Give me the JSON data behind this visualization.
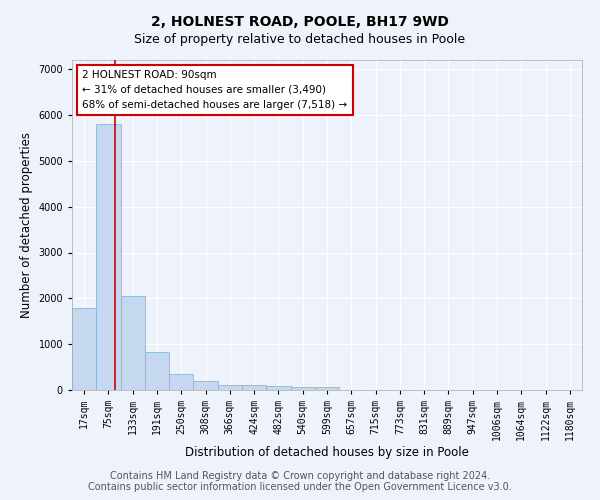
{
  "title": "2, HOLNEST ROAD, POOLE, BH17 9WD",
  "subtitle": "Size of property relative to detached houses in Poole",
  "xlabel": "Distribution of detached houses by size in Poole",
  "ylabel": "Number of detached properties",
  "bin_labels": [
    "17sqm",
    "75sqm",
    "133sqm",
    "191sqm",
    "250sqm",
    "308sqm",
    "366sqm",
    "424sqm",
    "482sqm",
    "540sqm",
    "599sqm",
    "657sqm",
    "715sqm",
    "773sqm",
    "831sqm",
    "889sqm",
    "947sqm",
    "1006sqm",
    "1064sqm",
    "1122sqm",
    "1180sqm"
  ],
  "bar_heights": [
    1780,
    5800,
    2060,
    830,
    340,
    190,
    120,
    110,
    95,
    65,
    65,
    0,
    0,
    0,
    0,
    0,
    0,
    0,
    0,
    0,
    0
  ],
  "bar_color": "#c5d8f0",
  "bar_edgecolor": "#7aafd4",
  "annotation_text": "2 HOLNEST ROAD: 90sqm\n← 31% of detached houses are smaller (3,490)\n68% of semi-detached houses are larger (7,518) →",
  "annotation_box_color": "#ffffff",
  "annotation_box_edgecolor": "#cc0000",
  "ylim": [
    0,
    7200
  ],
  "yticks": [
    0,
    1000,
    2000,
    3000,
    4000,
    5000,
    6000,
    7000
  ],
  "property_line_color": "#cc0000",
  "footer1": "Contains HM Land Registry data © Crown copyright and database right 2024.",
  "footer2": "Contains public sector information licensed under the Open Government Licence v3.0.",
  "background_color": "#eef2fa",
  "grid_color": "#ffffff",
  "title_fontsize": 10,
  "subtitle_fontsize": 9,
  "axis_label_fontsize": 8.5,
  "tick_fontsize": 7,
  "footer_fontsize": 7,
  "annotation_fontsize": 7.5
}
